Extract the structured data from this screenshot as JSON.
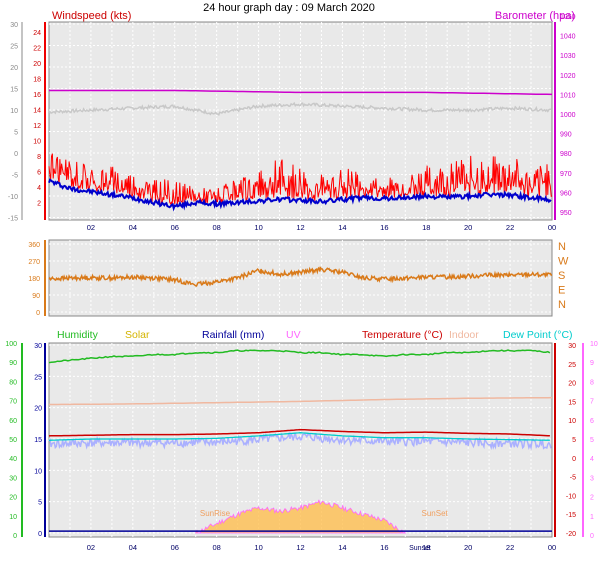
{
  "title": "24 hour graph day : 09 March 2020",
  "colors": {
    "plot_bg": "#e9e9e9",
    "grid": "#ffffff",
    "wind_max": "#ff0000",
    "wind_avg": "#0000cc",
    "barometer": "#cc00cc",
    "barometer_shadow": "#c8c8c8",
    "wind_dir": "#d97a1a",
    "humidity": "#22bb22",
    "solar": "#d4b400",
    "rainfall": "#000099",
    "uv": "#ff66ff",
    "temperature": "#cc0000",
    "indoor": "#f0b8a0",
    "dewpoint": "#00cccc",
    "dewpoint_shade": "#aab0ff",
    "solar_fill": "#ffbb44",
    "sunrise_label": "#f0a060",
    "sunset_label": "#f0a060"
  },
  "chart_data": [
    {
      "type": "line",
      "name": "wind-barometer",
      "left_axis_outer": {
        "ticks": [
          "30",
          "25",
          "20",
          "15",
          "10",
          "5",
          "0",
          "-5",
          "-10",
          "-15"
        ]
      },
      "left_axis_inner": {
        "label": "Windspeed (kts)",
        "ticks": [
          "24",
          "22",
          "20",
          "18",
          "16",
          "14",
          "12",
          "10",
          "8",
          "6",
          "4",
          "2"
        ],
        "range": [
          0,
          25
        ]
      },
      "right_axis": {
        "label": "Barometer (hpa)",
        "ticks": [
          "1050",
          "1040",
          "1030",
          "1020",
          "1010",
          "1000",
          "990",
          "980",
          "970",
          "960",
          "950"
        ],
        "range": [
          950,
          1050
        ]
      },
      "x_ticks": [
        "02",
        "04",
        "06",
        "08",
        "10",
        "12",
        "14",
        "16",
        "18",
        "20",
        "22",
        "00"
      ],
      "series": [
        {
          "name": "Windspeed (kts)",
          "key": "wind_max",
          "x": [
            0,
            1,
            2,
            3,
            4,
            5,
            6,
            7,
            8,
            9,
            10,
            11,
            12,
            13,
            14,
            15,
            16,
            17,
            18,
            19,
            20,
            21,
            22,
            23,
            24
          ],
          "y": [
            9,
            8,
            7,
            7,
            6,
            5,
            5,
            4,
            4,
            5,
            6,
            8,
            7,
            6,
            7,
            6,
            5,
            6,
            7,
            7,
            8,
            8,
            8,
            7,
            7
          ]
        },
        {
          "key": "wind_avg",
          "x": [
            0,
            1,
            2,
            3,
            4,
            5,
            6,
            7,
            8,
            9,
            10,
            11,
            12,
            13,
            14,
            15,
            16,
            17,
            18,
            19,
            20,
            21,
            22,
            23,
            24
          ],
          "y": [
            4.8,
            3.8,
            3.4,
            3.0,
            2.6,
            2.0,
            1.5,
            2.0,
            1.8,
            2.0,
            2.2,
            2.4,
            2.3,
            2.1,
            2.4,
            2.6,
            2.5,
            2.6,
            2.8,
            2.7,
            2.8,
            3.0,
            3.0,
            2.6,
            2.3
          ]
        },
        {
          "name": "Barometer (hpa)",
          "key": "barometer",
          "x": [
            0,
            6,
            12,
            18,
            24
          ],
          "y": [
            1012,
            1012,
            1011,
            1011,
            1010
          ]
        },
        {
          "key": "barometer_shadow",
          "x": [
            0,
            2,
            4,
            6,
            8,
            10,
            12,
            14,
            16,
            18,
            20,
            22,
            24
          ],
          "y": [
            1001,
            1002,
            1003,
            1004,
            1000,
            1004,
            1005,
            1004,
            1003,
            1002,
            1002,
            1003,
            1002
          ]
        }
      ]
    },
    {
      "type": "line",
      "name": "wind-direction",
      "left_axis": {
        "ticks": [
          "360",
          "270",
          "180",
          "90",
          "0"
        ],
        "range": [
          0,
          360
        ]
      },
      "right_axis": {
        "ticks": [
          "N",
          "W",
          "S",
          "E",
          "N"
        ]
      },
      "series": [
        {
          "key": "wind_dir",
          "x": [
            0,
            1,
            2,
            3,
            4,
            5,
            6,
            7,
            8,
            9,
            10,
            11,
            12,
            13,
            14,
            15,
            16,
            17,
            18,
            19,
            20,
            21,
            22,
            23,
            24
          ],
          "y": [
            175,
            180,
            182,
            180,
            185,
            180,
            170,
            145,
            160,
            180,
            220,
            200,
            210,
            225,
            210,
            180,
            175,
            180,
            185,
            185,
            190,
            195,
            195,
            200,
            195
          ]
        }
      ]
    },
    {
      "type": "line",
      "name": "temperature-humidity",
      "legend": [
        "Humidity",
        "Solar",
        "Rainfall (mm)",
        "UV",
        "Temperature (°C)",
        "Indoor",
        "Dew Point (°C)"
      ],
      "left_axis_outer": {
        "ticks": [
          "100",
          "90",
          "80",
          "70",
          "60",
          "50",
          "40",
          "30",
          "20",
          "10",
          "0"
        ],
        "range": [
          0,
          100
        ]
      },
      "left_axis_inner": {
        "ticks": [
          "30",
          "25",
          "20",
          "15",
          "10",
          "5",
          "0"
        ],
        "range": [
          0,
          30
        ]
      },
      "right_axis_outer": {
        "ticks": [
          "10",
          "9",
          "8",
          "7",
          "6",
          "5",
          "4",
          "3",
          "2",
          "1",
          "0"
        ],
        "range": [
          0,
          10
        ]
      },
      "right_axis_inner": {
        "ticks": [
          "30",
          "25",
          "20",
          "15",
          "10",
          "5",
          "0",
          "-5",
          "-10",
          "-15",
          "-20"
        ],
        "range": [
          -20,
          30
        ]
      },
      "x_ticks": [
        "02",
        "04",
        "06",
        "08",
        "10",
        "12",
        "14",
        "16",
        "18",
        "20",
        "22",
        "00"
      ],
      "annotations": [
        "SunRise",
        "SunSet",
        "Sunset"
      ],
      "series": [
        {
          "key": "humidity",
          "x": [
            0,
            1,
            2,
            3,
            4,
            5,
            6,
            7,
            8,
            9,
            10,
            11,
            12,
            13,
            14,
            15,
            16,
            17,
            18,
            19,
            20,
            21,
            22,
            23,
            24
          ],
          "y": [
            90,
            91,
            92,
            93,
            93,
            94,
            94,
            95,
            95,
            96,
            96,
            96,
            95,
            95,
            94,
            94,
            93,
            94,
            94,
            95,
            95,
            96,
            96,
            96,
            95
          ]
        },
        {
          "key": "temperature",
          "x": [
            0,
            2,
            4,
            6,
            8,
            10,
            12,
            14,
            16,
            18,
            20,
            22,
            24
          ],
          "y": [
            15.5,
            15.6,
            15.7,
            15.7,
            15.8,
            16.0,
            16.5,
            16.2,
            16.0,
            16.1,
            15.9,
            15.8,
            15.5
          ]
        },
        {
          "key": "indoor",
          "x": [
            0,
            4,
            8,
            12,
            16,
            20,
            24
          ],
          "y": [
            20.5,
            20.6,
            20.8,
            21.0,
            21.3,
            21.5,
            21.6
          ]
        },
        {
          "key": "dewpoint",
          "x": [
            0,
            2,
            4,
            6,
            8,
            10,
            12,
            14,
            16,
            18,
            20,
            22,
            24
          ],
          "y": [
            14.8,
            15.0,
            15.0,
            15.0,
            15.1,
            15.5,
            16.0,
            15.5,
            15.2,
            15.2,
            15.0,
            14.9,
            14.8
          ]
        },
        {
          "key": "solar",
          "x": [
            7,
            8,
            9,
            10,
            11,
            12,
            13,
            14,
            15,
            16,
            17
          ],
          "y": [
            0,
            1.5,
            3,
            4,
            3.5,
            4,
            5,
            4,
            3,
            2,
            0
          ]
        },
        {
          "key": "rainfall",
          "x": [
            0,
            24
          ],
          "y": [
            0.3,
            0.3
          ]
        }
      ]
    }
  ]
}
